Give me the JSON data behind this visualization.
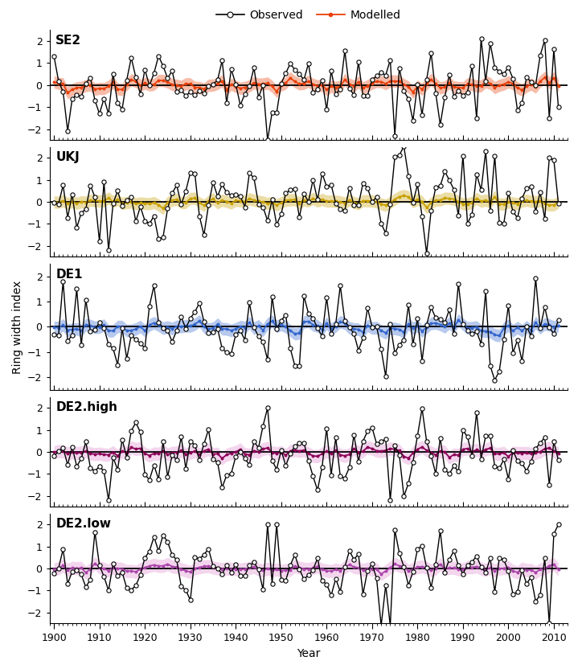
{
  "panels": [
    "SE2",
    "UKJ",
    "DE1",
    "DE2.high",
    "DE2.low"
  ],
  "panel_colors": [
    "#e8400a",
    "#c8a000",
    "#3366cc",
    "#8b0057",
    "#aa44aa"
  ],
  "panel_ci_colors": [
    "#e8400a",
    "#c8a000",
    "#3366cc",
    "#dd88cc",
    "#dd88cc"
  ],
  "ylim": [
    -2.5,
    2.5
  ],
  "yticks": [
    -2,
    -1,
    0,
    1,
    2
  ],
  "xlim": [
    1899,
    2013
  ],
  "xticks": [
    1900,
    1910,
    1920,
    1930,
    1940,
    1950,
    1960,
    1970,
    1980,
    1990,
    2000,
    2010
  ],
  "xlabel": "Year",
  "ylabel": "Ring width index",
  "legend_observed": "Observed",
  "legend_modelled": "Modelled",
  "background_color": "#ffffff",
  "title_fontsize": 11,
  "axis_fontsize": 10,
  "tick_fontsize": 9
}
